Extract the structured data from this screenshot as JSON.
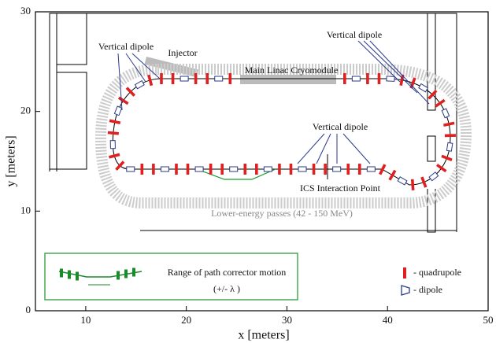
{
  "axes": {
    "xlabel": "x [meters]",
    "ylabel": "y [meters]",
    "xlim": [
      5,
      50
    ],
    "ylim": [
      0,
      30
    ],
    "xticks": [
      10,
      20,
      30,
      40,
      50
    ],
    "yticks": [
      0,
      10,
      20,
      30
    ]
  },
  "annotations": [
    "Vertical dipole",
    "Injector",
    "Main Linac Cryomodule",
    "Vertical dipole",
    "Vertical dipole",
    "ICS Interaction Point",
    "Lower-energy passes (42 - 150 MeV)"
  ],
  "legend": {
    "corrector": [
      "Range of path corrector motion",
      "(+/- λ )"
    ],
    "quadrupole": "- quadrupole",
    "dipole": "- dipole"
  }
}
